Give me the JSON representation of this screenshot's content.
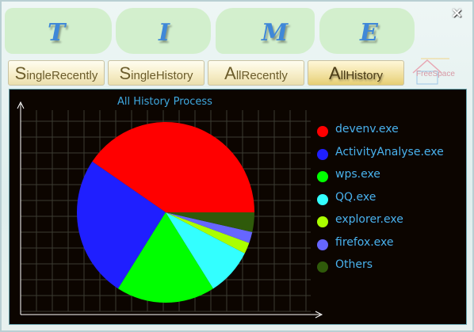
{
  "window": {
    "title_letters": [
      "T",
      "I",
      "M",
      "E"
    ],
    "close_symbol": "×"
  },
  "tabs": [
    {
      "cap": "S",
      "rest": "ingleRecently",
      "active": false
    },
    {
      "cap": "S",
      "rest": "ingleHistory",
      "active": false
    },
    {
      "cap": "A",
      "rest": "llRecently",
      "active": false
    },
    {
      "cap": "A",
      "rest": "llHistory",
      "active": true
    }
  ],
  "logo": {
    "text": "FreeSpace"
  },
  "chart_data": {
    "type": "pie",
    "title": "All History Process",
    "grid": true,
    "legend_position": "right",
    "slices": [
      {
        "name": "devenv.exe",
        "value": 40.5,
        "color": "#ff0000"
      },
      {
        "name": "ActivityAnalyse.exe",
        "value": 25.5,
        "color": "#1f1fff"
      },
      {
        "name": "wps.exe",
        "value": 18.0,
        "color": "#00ff00"
      },
      {
        "name": "QQ.exe",
        "value": 8.5,
        "color": "#33ffff"
      },
      {
        "name": "explorer.exe",
        "value": 2.0,
        "color": "#aaff00"
      },
      {
        "name": "firefox.exe",
        "value": 2.0,
        "color": "#6666ff"
      },
      {
        "name": "Others",
        "value": 3.5,
        "color": "#2f5a0a"
      }
    ]
  }
}
